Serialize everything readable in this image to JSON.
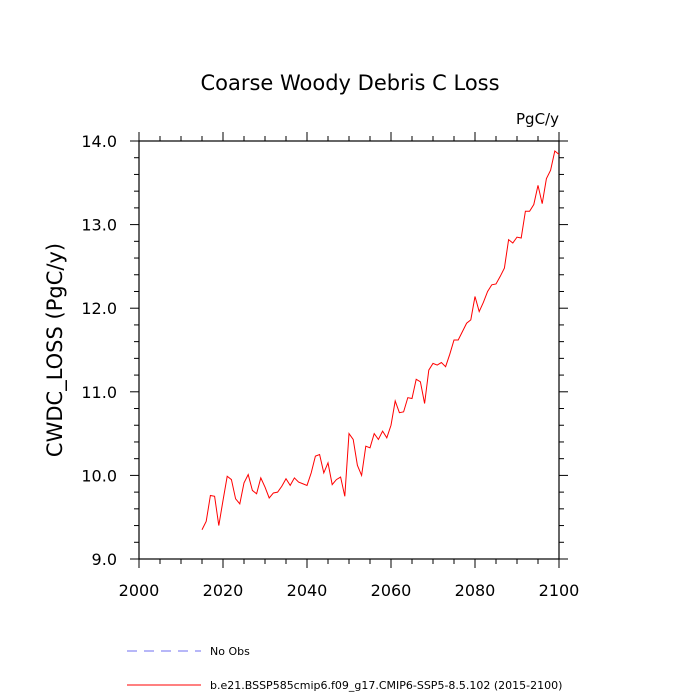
{
  "chart_data": {
    "type": "line",
    "title": "Coarse Woody Debris C Loss",
    "units_label": "PgC/y",
    "ylabel": "CWDC_LOSS  (PgC/y)",
    "xlabel": "",
    "xlim": [
      2000,
      2100
    ],
    "ylim": [
      9.0,
      14.0
    ],
    "x_ticks": [
      "2000",
      "2020",
      "2040",
      "2060",
      "2080",
      "2100"
    ],
    "y_ticks": [
      "9.0",
      "10.0",
      "11.0",
      "12.0",
      "13.0",
      "14.0"
    ],
    "legend_placement": "bottom-left",
    "series": [
      {
        "name": "No Obs",
        "color": "#6f6ff0",
        "dash": "dashed",
        "x": [],
        "y": []
      },
      {
        "name": "b.e21.BSSP585cmip6.f09_g17.CMIP6-SSP5-8.5.102 (2015-2100)",
        "color": "#ff0000",
        "dash": "solid",
        "x": [
          2015,
          2016,
          2017,
          2018,
          2019,
          2020,
          2021,
          2022,
          2023,
          2024,
          2025,
          2026,
          2027,
          2028,
          2029,
          2030,
          2031,
          2032,
          2033,
          2034,
          2035,
          2036,
          2037,
          2038,
          2039,
          2040,
          2041,
          2042,
          2043,
          2044,
          2045,
          2046,
          2047,
          2048,
          2049,
          2050,
          2051,
          2052,
          2053,
          2054,
          2055,
          2056,
          2057,
          2058,
          2059,
          2060,
          2061,
          2062,
          2063,
          2064,
          2065,
          2066,
          2067,
          2068,
          2069,
          2070,
          2071,
          2072,
          2073,
          2074,
          2075,
          2076,
          2077,
          2078,
          2079,
          2080,
          2081,
          2082,
          2083,
          2084,
          2085,
          2086,
          2087,
          2088,
          2089,
          2090,
          2091,
          2092,
          2093,
          2094,
          2095,
          2096,
          2097,
          2098,
          2099,
          2100
        ],
        "y": [
          9.35,
          9.45,
          9.76,
          9.75,
          9.4,
          9.7,
          9.99,
          9.95,
          9.72,
          9.66,
          9.91,
          10.01,
          9.82,
          9.78,
          9.97,
          9.86,
          9.73,
          9.79,
          9.8,
          9.87,
          9.96,
          9.88,
          9.97,
          9.92,
          9.9,
          9.88,
          10.03,
          10.23,
          10.25,
          10.03,
          10.15,
          9.89,
          9.95,
          9.98,
          9.75,
          10.5,
          10.43,
          10.12,
          10.0,
          10.35,
          10.33,
          10.5,
          10.43,
          10.53,
          10.45,
          10.6,
          10.89,
          10.75,
          10.76,
          10.93,
          10.92,
          11.15,
          11.12,
          10.86,
          11.26,
          11.34,
          11.32,
          11.35,
          11.3,
          11.45,
          11.62,
          11.62,
          11.72,
          11.82,
          11.86,
          12.14,
          11.96,
          12.07,
          12.2,
          12.28,
          12.29,
          12.38,
          12.48,
          12.82,
          12.78,
          12.85,
          12.84,
          13.16,
          13.16,
          13.24,
          13.47,
          13.25,
          13.55,
          13.65,
          13.88,
          13.84
        ]
      }
    ]
  }
}
